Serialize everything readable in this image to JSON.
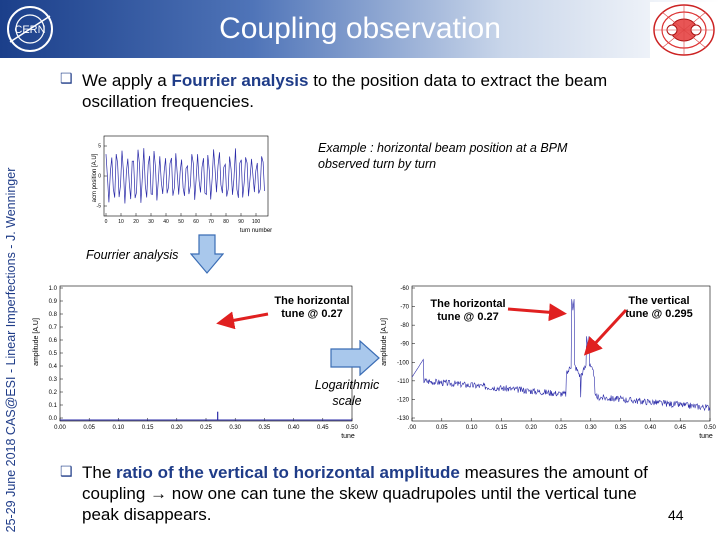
{
  "header": {
    "title": "Coupling observation",
    "logo_text": "CERN"
  },
  "sidebar": {
    "text": "25-29 June 2018     CAS@ESI - Linear Imperfections - J. Wenninger"
  },
  "bullets": {
    "first": {
      "pre": "We apply a ",
      "bold": "Fourrier analysis",
      "post": " to the position data to extract the beam oscillation frequencies."
    },
    "second": {
      "pre": "The ",
      "bold": "ratio of the vertical to horizontal amplitude",
      "post": " measures the amount of coupling → now one can tune the skew quadrupoles until the vertical tune peak disappears."
    }
  },
  "captions": {
    "example": "Example : horizontal beam position at a BPM observed turn by turn",
    "fourrier": "Fourrier analysis",
    "log_scale": "Logarithmic scale"
  },
  "annotations": {
    "left_horizontal_tune": "The horizontal tune @ 0.27",
    "right_horizontal_tune": "The horizontal tune @ 0.27",
    "vertical_tune": "The vertical tune @ 0.295"
  },
  "page_number": "44",
  "colors": {
    "accent": "#1f3c88",
    "signal": "#2a2aa8",
    "arrow_red": "#e02020",
    "arrow_blue": "#a9c8ec"
  },
  "chart_data": [
    {
      "type": "line",
      "title": "",
      "xlabel": "turn number",
      "ylabel": "acm position [A.U]",
      "xlim": [
        0,
        110
      ],
      "x_ticks": [
        "0",
        "10",
        "20",
        "30",
        "40",
        "50",
        "60",
        "70",
        "80",
        "90",
        "100"
      ],
      "y_ticks": [
        "-5",
        "0",
        "5"
      ]
    },
    {
      "type": "line",
      "xlabel": "tune",
      "ylabel": "amplitude [A.U]",
      "xlim": [
        0,
        0.5
      ],
      "ylim": [
        0,
        1.0
      ],
      "x_ticks": [
        "0.00",
        "0.05",
        "0.10",
        "0.15",
        "0.20",
        "0.25",
        "0.30",
        "0.35",
        "0.40",
        "0.45",
        "0.50"
      ],
      "y_ticks": [
        "1.0",
        "0.9",
        "0.8",
        "0.7",
        "0.6",
        "0.5",
        "0.4",
        "0.3",
        "0.2",
        "0.1",
        "0.0"
      ],
      "series": [
        {
          "peaks": [
            {
              "x": 0.27,
              "y": 0.07
            }
          ]
        }
      ]
    },
    {
      "type": "line",
      "xlabel": "tune",
      "ylabel": "amplitude [A.U]",
      "xlim": [
        0,
        0.5
      ],
      "ylim": [
        -130,
        -60
      ],
      "x_ticks": [
        ".00",
        "0.05",
        "0.10",
        "0.15",
        "0.20",
        "0.25",
        "0.30",
        "0.35",
        "0.40",
        "0.45",
        "0.50"
      ],
      "y_ticks": [
        "-60",
        "-70",
        "-80",
        "-90",
        "-100",
        "-110",
        "-120",
        "-130"
      ],
      "log_scale": true,
      "series": [
        {
          "peaks": [
            {
              "x": 0.27,
              "y": -72
            },
            {
              "x": 0.295,
              "y": -92
            }
          ]
        }
      ]
    }
  ]
}
